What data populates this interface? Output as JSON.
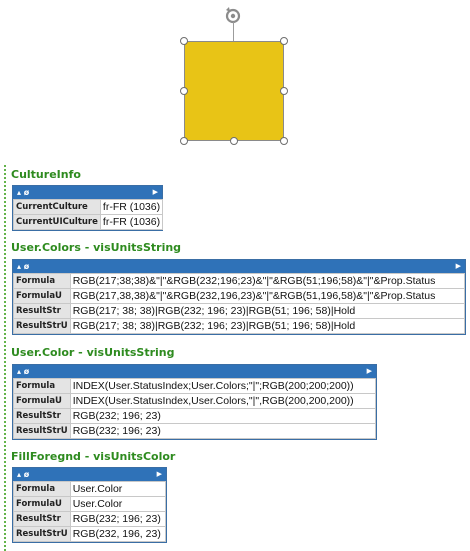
{
  "colors": {
    "shape_fill": "#e8c416",
    "section_title": "#2e8b1f",
    "grid_header": "#2f72b8",
    "guide": "#63b34a"
  },
  "icons": {
    "rotate": "rotate-handle-icon",
    "collapse": "collapse-arrow-icon",
    "expand": "expand-arrow-icon",
    "options": "options-icon"
  },
  "sections": [
    {
      "title": "CultureInfo",
      "rows": [
        {
          "label": "CurrentCulture",
          "value": "fr-FR (1036)"
        },
        {
          "label": "CurrentUICulture",
          "value": "fr-FR (1036)"
        }
      ]
    },
    {
      "title": "User.Colors - visUnitsString",
      "rows": [
        {
          "label": "Formula",
          "value": "RGB(217;38;38)&\"|\"&RGB(232;196;23)&\"|\"&RGB(51;196;58)&\"|\"&Prop.Status"
        },
        {
          "label": "FormulaU",
          "value": "RGB(217,38,38)&\"|\"&RGB(232,196,23)&\"|\"&RGB(51,196,58)&\"|\"&Prop.Status"
        },
        {
          "label": "ResultStr",
          "value": "RGB(217; 38; 38)|RGB(232; 196; 23)|RGB(51; 196; 58)|Hold"
        },
        {
          "label": "ResultStrU",
          "value": "RGB(217; 38; 38)|RGB(232; 196; 23)|RGB(51; 196; 58)|Hold"
        }
      ]
    },
    {
      "title": "User.Color - visUnitsString",
      "rows": [
        {
          "label": "Formula",
          "value": "INDEX(User.StatusIndex;User.Colors;\"|\";RGB(200;200;200))"
        },
        {
          "label": "FormulaU",
          "value": "INDEX(User.StatusIndex,User.Colors,\"|\",RGB(200,200,200))"
        },
        {
          "label": "ResultStr",
          "value": "RGB(232; 196; 23)"
        },
        {
          "label": "ResultStrU",
          "value": "RGB(232; 196; 23)"
        }
      ]
    },
    {
      "title": "FillForegnd - visUnitsColor",
      "rows": [
        {
          "label": "Formula",
          "value": "User.Color"
        },
        {
          "label": "FormulaU",
          "value": "User.Color"
        },
        {
          "label": "ResultStr",
          "value": "RGB(232; 196; 23)"
        },
        {
          "label": "ResultStrU",
          "value": "RGB(232, 196, 23)"
        }
      ]
    }
  ],
  "grid_header": {
    "icons": "▴ ø",
    "arrow": "▶"
  }
}
